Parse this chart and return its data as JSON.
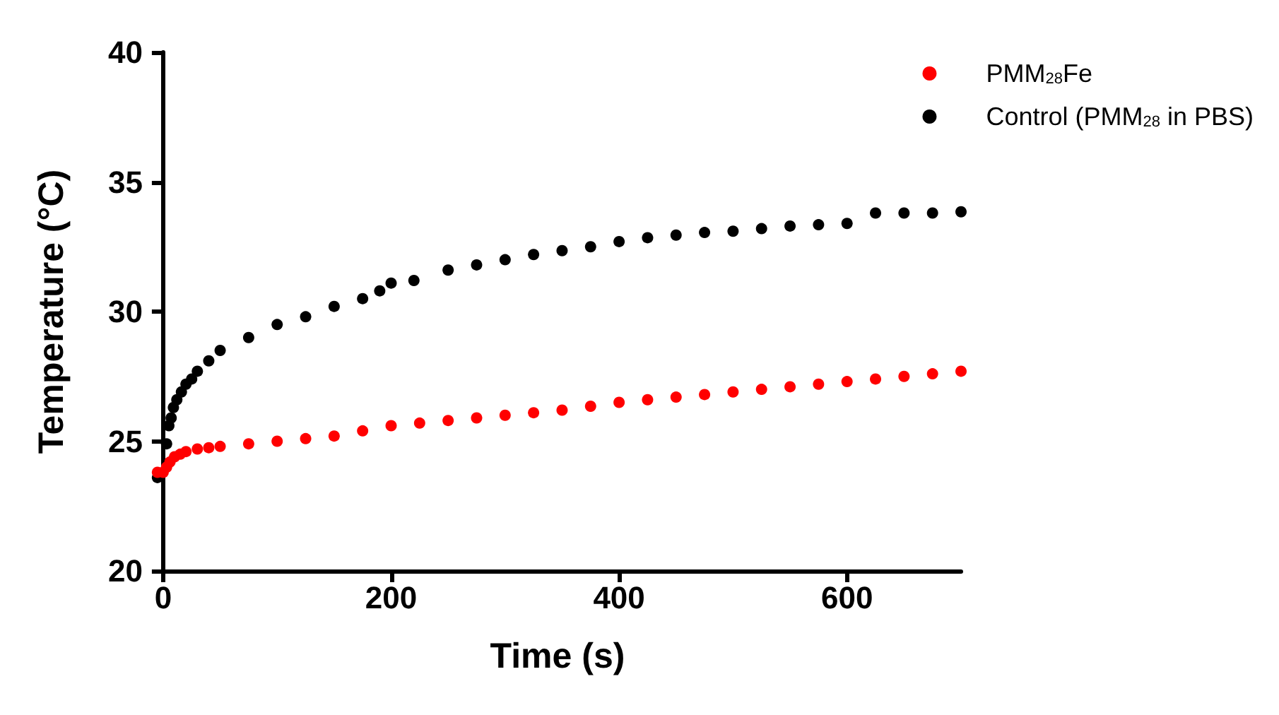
{
  "chart_data": {
    "type": "scatter",
    "xlabel": "Time (s)",
    "ylabel": "Temperature (°C)",
    "xlim": [
      -8,
      700
    ],
    "ylim": [
      20,
      40
    ],
    "xticks": [
      0,
      200,
      400,
      600
    ],
    "yticks": [
      20,
      25,
      30,
      35,
      40
    ],
    "grid": false,
    "legend": "top right",
    "marker": "circle",
    "series": [
      {
        "name": "PMM$_{28}$Fe",
        "color": "#ff0000",
        "x": [
          -5,
          0,
          3,
          6,
          10,
          15,
          20,
          30,
          40,
          50,
          75,
          100,
          125,
          150,
          175,
          200,
          225,
          250,
          275,
          300,
          325,
          350,
          375,
          400,
          425,
          450,
          475,
          500,
          525,
          550,
          575,
          600,
          625,
          650,
          675,
          700
        ],
        "values": [
          23.8,
          23.8,
          24.0,
          24.2,
          24.4,
          24.5,
          24.6,
          24.7,
          24.75,
          24.8,
          24.9,
          25.0,
          25.1,
          25.2,
          25.4,
          25.6,
          25.7,
          25.8,
          25.9,
          26.0,
          26.1,
          26.2,
          26.35,
          26.5,
          26.6,
          26.7,
          26.8,
          26.9,
          27.0,
          27.1,
          27.2,
          27.3,
          27.4,
          27.5,
          27.6,
          27.7
        ]
      },
      {
        "name": "Control (PMM$_{28}$ in PBS)",
        "color": "#000000",
        "x": [
          -5,
          3,
          5,
          7,
          9,
          12,
          16,
          20,
          25,
          30,
          40,
          50,
          75,
          100,
          125,
          150,
          175,
          190,
          200,
          220,
          250,
          275,
          300,
          325,
          350,
          375,
          400,
          425,
          450,
          475,
          500,
          525,
          550,
          575,
          600,
          625,
          650,
          675,
          700
        ],
        "values": [
          23.6,
          24.9,
          25.6,
          25.9,
          26.3,
          26.6,
          26.9,
          27.2,
          27.4,
          27.7,
          28.1,
          28.5,
          29.0,
          29.5,
          29.8,
          30.2,
          30.5,
          30.8,
          31.1,
          31.2,
          31.6,
          31.8,
          32.0,
          32.2,
          32.35,
          32.5,
          32.7,
          32.85,
          32.95,
          33.05,
          33.1,
          33.2,
          33.3,
          33.35,
          33.4,
          33.8,
          33.8,
          33.8,
          33.85
        ]
      }
    ]
  }
}
